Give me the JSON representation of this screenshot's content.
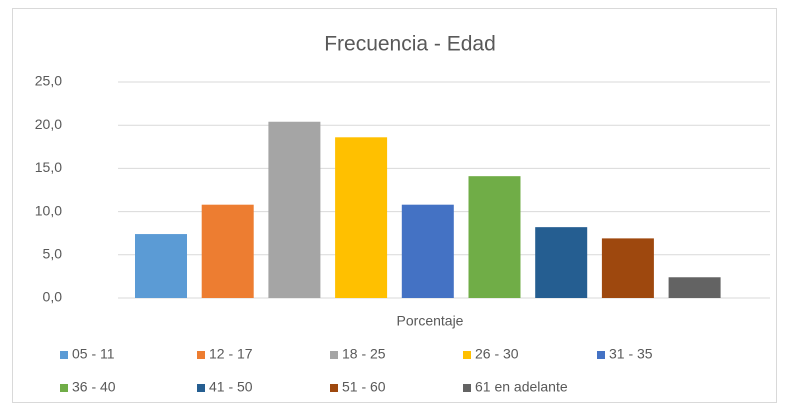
{
  "chart_data": {
    "type": "bar",
    "title": "Frecuencia - Edad",
    "categories": [
      "Porcentaje"
    ],
    "series": [
      {
        "name": "05 - 11",
        "color": "#5b9bd5",
        "values": [
          7.4
        ]
      },
      {
        "name": "12 - 17",
        "color": "#ed7d31",
        "values": [
          10.8
        ]
      },
      {
        "name": "18 - 25",
        "color": "#a5a5a5",
        "values": [
          20.4
        ]
      },
      {
        "name": "26 - 30",
        "color": "#ffc000",
        "values": [
          18.6
        ]
      },
      {
        "name": "31 - 35",
        "color": "#4472c4",
        "values": [
          10.8
        ]
      },
      {
        "name": "36 - 40",
        "color": "#70ad47",
        "values": [
          14.1
        ]
      },
      {
        "name": "41 - 50",
        "color": "#255e91",
        "values": [
          8.2
        ]
      },
      {
        "name": "51 - 60",
        "color": "#9e480e",
        "values": [
          6.9
        ]
      },
      {
        "name": "61 en adelante",
        "color": "#636363",
        "values": [
          2.4
        ]
      }
    ],
    "ylim": [
      0,
      25
    ],
    "yticks": [
      {
        "value": 0,
        "label": "0,0"
      },
      {
        "value": 5,
        "label": "5,0"
      },
      {
        "value": 10,
        "label": "10,0"
      },
      {
        "value": 15,
        "label": "15,0"
      },
      {
        "value": 20,
        "label": "20,0"
      },
      {
        "value": 25,
        "label": "25,0"
      }
    ],
    "grid": true,
    "legend": "bottom"
  }
}
